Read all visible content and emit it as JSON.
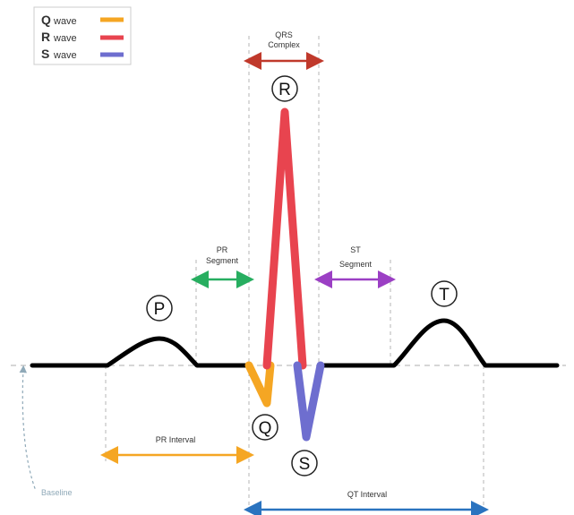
{
  "legend": {
    "items": [
      {
        "letter": "Q",
        "text": "wave",
        "color": "#f5a623"
      },
      {
        "letter": "R",
        "text": "wave",
        "color": "#e8444f"
      },
      {
        "letter": "S",
        "text": "wave",
        "color": "#6e6ecf"
      }
    ]
  },
  "waves": {
    "p": "P",
    "q": "Q",
    "r": "R",
    "s": "S",
    "t": "T"
  },
  "annotations": {
    "qrs_line1": "QRS",
    "qrs_line2": "Complex",
    "pr_segment_line1": "PR",
    "pr_segment_line2": "Segment",
    "st_segment_line1": "ST",
    "st_segment_line2": "Segment",
    "pr_interval": "PR Interval",
    "qt_interval": "QT Interval",
    "baseline": "Baseline"
  },
  "colors": {
    "trace": "#000000",
    "q_wave": "#f5a623",
    "r_wave": "#e8444f",
    "s_wave": "#6e6ecf",
    "qrs_arrow": "#c0392b",
    "pr_segment_arrow": "#27ae60",
    "st_segment_arrow": "#9b3fc4",
    "pr_interval_arrow": "#f5a623",
    "qt_interval_arrow": "#2a73bf",
    "baseline": "#8fa9b8",
    "guide": "#b5b5b5"
  }
}
